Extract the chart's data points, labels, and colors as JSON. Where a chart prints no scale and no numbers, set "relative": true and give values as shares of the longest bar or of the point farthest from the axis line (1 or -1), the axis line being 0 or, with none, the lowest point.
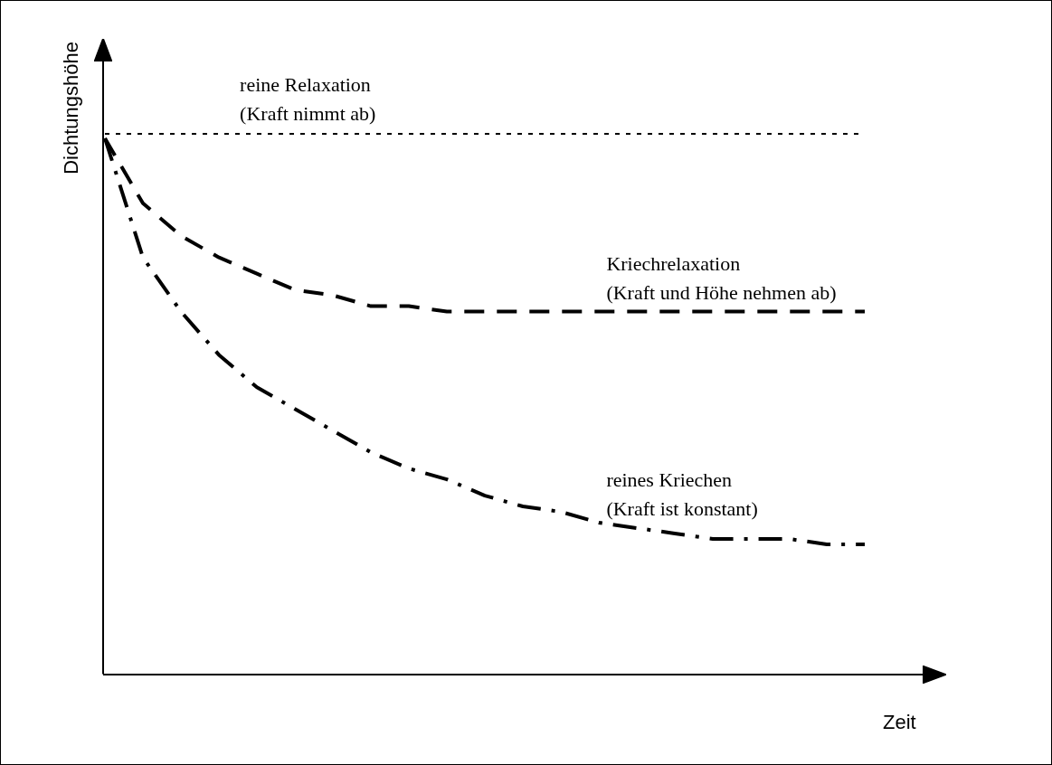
{
  "chart_data": {
    "type": "line",
    "relative": true,
    "xlabel": "Zeit",
    "ylabel": "Dichtungshöhe",
    "legend": false,
    "marker": "none",
    "categories": [
      null,
      null,
      null,
      null,
      null,
      null,
      null,
      null,
      null,
      null,
      null,
      null,
      null,
      null,
      null,
      null,
      null,
      null,
      null,
      null,
      null
    ],
    "series": [
      {
        "name": "reine Relaxation\n(Kraft nimmt ab)",
        "color": "#000000",
        "line_style": "dotted",
        "values": [
          1,
          1,
          1,
          1,
          1,
          1,
          1,
          1,
          1,
          1,
          1,
          1,
          1,
          1,
          1,
          1,
          1,
          1,
          1,
          1,
          1
        ]
      },
      {
        "name": "Kriechrelaxation\n(Kraft und Höhe nehmen ab)",
        "color": "#000000",
        "line_style": "dashed",
        "values": [
          0.99,
          0.87,
          0.81,
          0.77,
          0.74,
          0.71,
          0.7,
          0.68,
          0.68,
          0.67,
          0.67,
          0.67,
          0.67,
          0.67,
          0.67,
          0.67,
          0.67,
          0.67,
          0.67,
          0.67,
          0.67
        ]
      },
      {
        "name": "reines Kriechen\n(Kraft ist konstant)",
        "color": "#000000",
        "line_style": "dashdot",
        "values": [
          0.99,
          0.77,
          0.67,
          0.59,
          0.53,
          0.49,
          0.45,
          0.41,
          0.38,
          0.36,
          0.33,
          0.31,
          0.3,
          0.28,
          0.27,
          0.26,
          0.25,
          0.25,
          0.25,
          0.24,
          0.24
        ]
      }
    ]
  }
}
